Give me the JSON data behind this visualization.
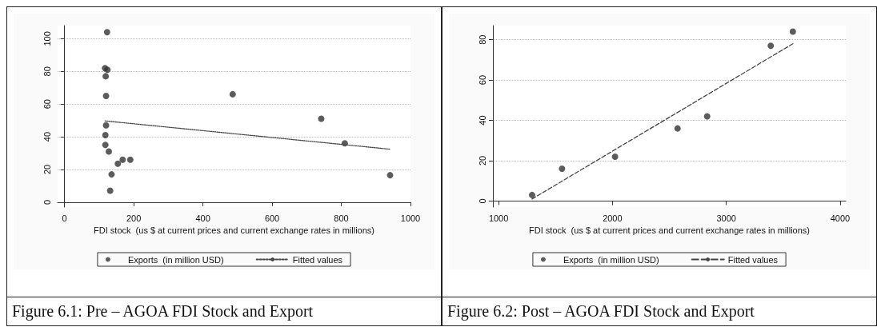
{
  "chart_data": [
    {
      "type": "scatter",
      "xlabel": "FDI stock  (us $ at current prices and current exchange rates in millions)",
      "annotations": [
        "Figure 6.1: Pre – AGOA FDI Stock and Export"
      ],
      "x": [
        123,
        117,
        124,
        119,
        120,
        120,
        118,
        118,
        128,
        136,
        154,
        168,
        190,
        132,
        486,
        742,
        810,
        941
      ],
      "xlim": [
        -20,
        1000
      ],
      "xticks": [
        0,
        200,
        400,
        600,
        800,
        1000
      ],
      "ylim": [
        -3,
        108
      ],
      "yticks": [
        0,
        20,
        40,
        60,
        80,
        100
      ],
      "grid": "y",
      "legend": "bottom",
      "series": [
        {
          "name": "Exports  (in million USD)",
          "color": "#333333",
          "marker": "circle",
          "values": [
            104,
            82,
            81,
            77,
            65,
            47,
            41,
            35,
            31,
            17,
            23.5,
            26,
            26,
            7,
            66,
            51,
            36,
            16.5
          ]
        },
        {
          "name": "Fitted values",
          "type": "line",
          "color": "#444444",
          "line_style": "dotted",
          "marker": "none",
          "x": [
            117,
            941
          ],
          "values": [
            49.7,
            32.4
          ]
        }
      ]
    },
    {
      "type": "scatter",
      "xlabel": "FDI stock  (us $ at current prices and current exchange rates in millions)",
      "annotations": [
        "Figure 6.2: Post – AGOA FDI Stock and Export"
      ],
      "x": [
        1294,
        1557,
        2023,
        2572,
        2832,
        3391,
        3585
      ],
      "xlim": [
        950,
        4050
      ],
      "xticks": [
        1000,
        2000,
        3000,
        4000
      ],
      "ylim": [
        -3,
        87
      ],
      "yticks": [
        0,
        20,
        40,
        60,
        80
      ],
      "grid": "y",
      "legend": "bottom",
      "series": [
        {
          "name": "Exports  (in million USD)",
          "color": "#333333",
          "marker": "circle",
          "values": [
            3,
            16,
            22,
            36,
            42,
            77,
            84
          ]
        },
        {
          "name": "Fitted values",
          "type": "line",
          "color": "#444444",
          "line_style": "dashed",
          "marker": "none",
          "x": [
            1294,
            3585
          ],
          "values": [
            1,
            78
          ]
        }
      ]
    }
  ]
}
